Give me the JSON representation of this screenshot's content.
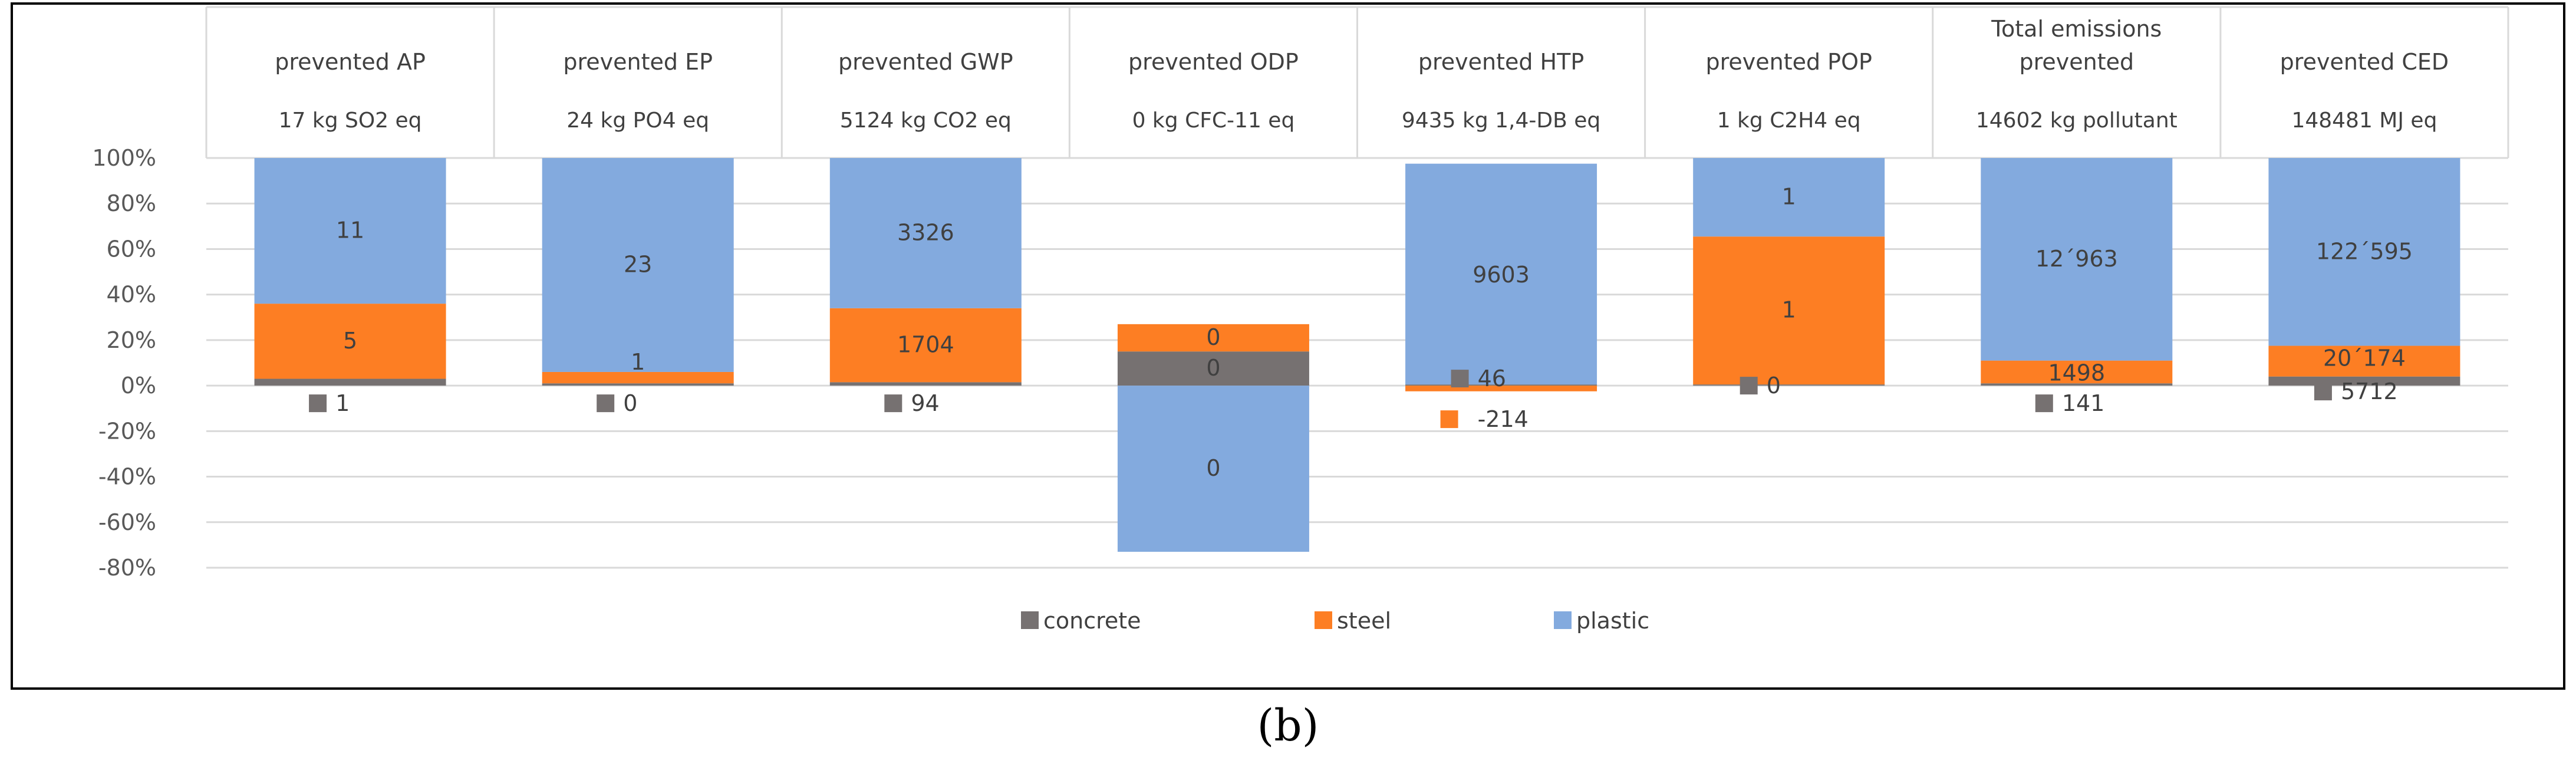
{
  "chart_data": {
    "type": "bar",
    "stacked": true,
    "normalized_percent": true,
    "categories": [
      {
        "title": "prevented AP",
        "subtitle": "17 kg SO2 eq"
      },
      {
        "title": "prevented EP",
        "subtitle": "24 kg PO4 eq"
      },
      {
        "title": "prevented GWP",
        "subtitle": "5124 kg CO2 eq"
      },
      {
        "title": "prevented ODP",
        "subtitle": "0 kg CFC-11 eq"
      },
      {
        "title": "prevented HTP",
        "subtitle": "9435 kg 1,4-DB eq"
      },
      {
        "title": "prevented POP",
        "subtitle": "1 kg C2H4 eq"
      },
      {
        "title": "Total emissions prevented",
        "subtitle": "14602 kg pollutant"
      },
      {
        "title": "prevented CED",
        "subtitle": "148481 MJ eq"
      }
    ],
    "series": [
      {
        "name": "concrete",
        "color": "#767171",
        "percent": [
          3,
          1,
          1.5,
          15,
          0.5,
          0.5,
          1,
          4
        ],
        "labels": [
          "1",
          "0",
          "94",
          "0",
          "46",
          "0",
          "141",
          "5712"
        ]
      },
      {
        "name": "steel",
        "color": "#fd7e23",
        "percent": [
          33,
          5,
          32.5,
          12,
          -2.5,
          65,
          10,
          13.5
        ],
        "labels": [
          "5",
          "1",
          "1704",
          "0",
          "-214",
          "1",
          "1498",
          "20´174"
        ]
      },
      {
        "name": "plastic",
        "color": "#83aade",
        "percent": [
          64,
          94,
          66,
          -73,
          97,
          34.5,
          89,
          82.5
        ],
        "labels": [
          "11",
          "23",
          "3326",
          "0",
          "9603",
          "1",
          "12´963",
          "122´595"
        ]
      }
    ],
    "y_ticks": [
      "100%",
      "80%",
      "60%",
      "40%",
      "20%",
      "0%",
      "-20%",
      "-40%",
      "-60%",
      "-80%"
    ],
    "ylim": [
      -80,
      100
    ],
    "grid": true,
    "legend_position": "bottom"
  },
  "caption": "(b)"
}
